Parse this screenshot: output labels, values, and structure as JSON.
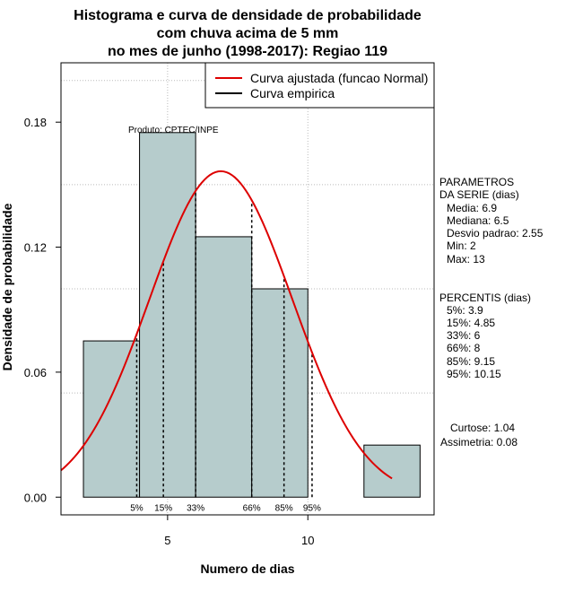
{
  "chart_data": {
    "type": "bar",
    "title_lines": [
      "Histograma e curva de densidade de probabilidade",
      "com chuva acima de 5 mm",
      "no mes de junho (1998-2017): Regiao 119"
    ],
    "xlabel": "Numero de dias",
    "ylabel": "Densidade de probabilidade",
    "xlim": [
      1.2,
      14.5
    ],
    "ylim": [
      -0.0085,
      0.2085
    ],
    "x_ticks": [
      5,
      10
    ],
    "y_ticks": [
      0.0,
      0.06,
      0.12,
      0.18
    ],
    "y_tick_labels": [
      "0.00",
      "0.06",
      "0.12",
      "0.18"
    ],
    "grid_x": [
      5,
      10
    ],
    "grid_y": [
      0.05,
      0.1,
      0.15,
      0.2
    ],
    "bins": [
      {
        "start": 2,
        "end": 4,
        "density": 0.075
      },
      {
        "start": 4,
        "end": 6,
        "density": 0.175
      },
      {
        "start": 6,
        "end": 8,
        "density": 0.125
      },
      {
        "start": 8,
        "end": 10,
        "density": 0.1
      },
      {
        "start": 10,
        "end": 12,
        "density": 0.0
      },
      {
        "start": 12,
        "end": 14,
        "density": 0.025
      }
    ],
    "bar_color": "#b6cccc",
    "curve_color": "#dd0000",
    "normal_fit": {
      "mean": 6.9,
      "sd": 2.55,
      "x_range": [
        1.2,
        13
      ]
    },
    "percentile_lines": [
      {
        "label": "5%",
        "x": 3.9
      },
      {
        "label": "15%",
        "x": 4.85
      },
      {
        "label": "33%",
        "x": 6
      },
      {
        "label": "66%",
        "x": 8
      },
      {
        "label": "85%",
        "x": 9.15
      },
      {
        "label": "95%",
        "x": 10.15
      }
    ],
    "annotation": "Produto: CPTEC/INPE",
    "legend": {
      "position": "top-right",
      "entries": [
        {
          "label": "Curva ajustada (funcao Normal)",
          "color": "#dd0000"
        },
        {
          "label": "Curva empirica",
          "color": "#000000"
        }
      ]
    },
    "side_panel": {
      "params_header": [
        "PARAMETROS",
        "DA SERIE (dias)"
      ],
      "params": [
        "Media: 6.9",
        "Mediana: 6.5",
        "Desvio padrao: 2.55",
        "Min: 2",
        "Max: 13"
      ],
      "percentis_header": "PERCENTIS (dias)",
      "percentis": [
        "5%: 3.9",
        "15%: 4.85",
        "33%: 6",
        "66%: 8",
        "85%: 9.15",
        "95%: 10.15"
      ],
      "stats": [
        "Curtose: 1.04",
        "Assimetria: 0.08"
      ]
    }
  }
}
